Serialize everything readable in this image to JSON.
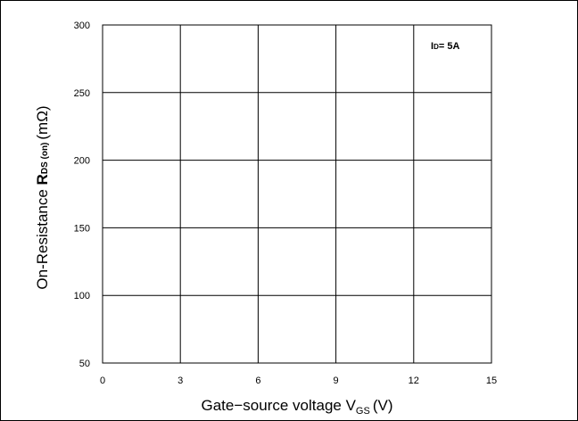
{
  "chart_data": {
    "type": "line",
    "title": "",
    "xlabel": {
      "main": "Gate−source voltage V",
      "sub": "GS",
      "unit": "(V)"
    },
    "ylabel": {
      "prefix": "On-Resistance ",
      "symbol": "R",
      "sub": "DS (on)",
      "unit": "(mΩ)"
    },
    "xlim": [
      0,
      15
    ],
    "ylim": [
      50,
      300
    ],
    "xticks": [
      0,
      3,
      6,
      9,
      12,
      15
    ],
    "yticks": [
      50,
      100,
      150,
      200,
      250,
      300
    ],
    "grid": true,
    "series": [],
    "annotation": {
      "symbol": "I",
      "sub": "D",
      "text": "= 5A"
    }
  }
}
